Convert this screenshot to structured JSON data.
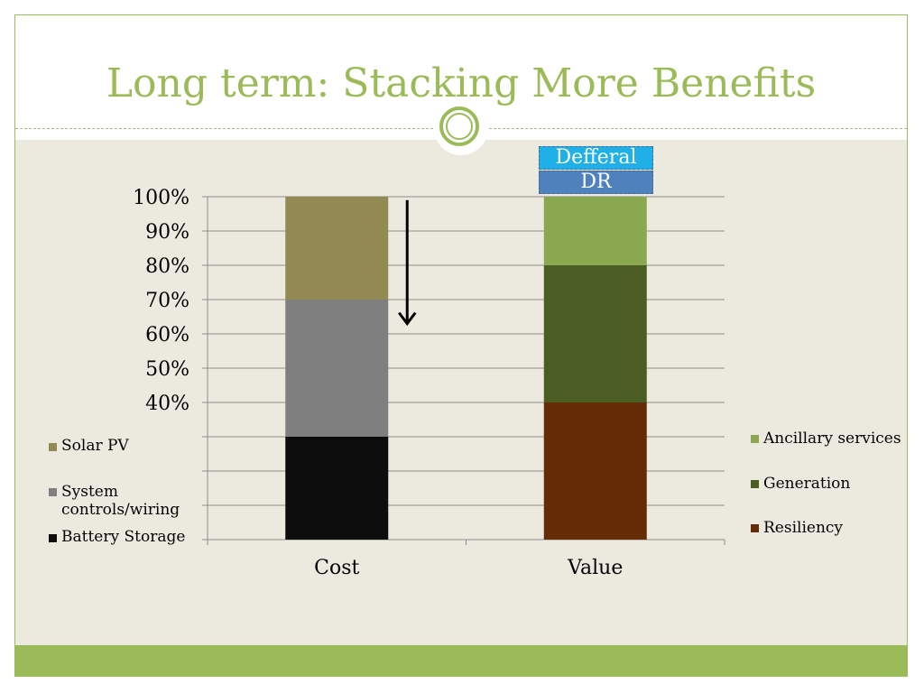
{
  "slide": {
    "title": "Long term: Stacking More Benefits"
  },
  "top_labels": {
    "defferal": "Defferal",
    "dr": "DR"
  },
  "legend_left": [
    {
      "label": "Solar PV",
      "color": "#938953"
    },
    {
      "label": "System\ncontrols/wiring",
      "color": "#7f7f7f"
    },
    {
      "label": "Battery Storage",
      "color": "#0d0d0d"
    }
  ],
  "legend_right": [
    {
      "label": "Ancillary services",
      "color": "#8aa84f"
    },
    {
      "label": "Generation",
      "color": "#4a5e23"
    },
    {
      "label": "Resiliency",
      "color": "#632c04"
    }
  ],
  "chart_data": {
    "type": "bar",
    "stacked": true,
    "categories": [
      "Cost",
      "Value"
    ],
    "ylim": [
      0,
      100
    ],
    "ytick_labels": [
      "100%",
      "90%",
      "80%",
      "70%",
      "60%",
      "50%",
      "40%"
    ],
    "grid": true,
    "series": [
      {
        "category": "Cost",
        "name": "Battery Storage",
        "bottom": 0,
        "top": 30,
        "color": "#0d0d0d"
      },
      {
        "category": "Cost",
        "name": "System controls/wiring",
        "bottom": 30,
        "top": 70,
        "color": "#7f7f7f"
      },
      {
        "category": "Cost",
        "name": "Solar PV",
        "bottom": 70,
        "top": 100,
        "color": "#938953"
      },
      {
        "category": "Value",
        "name": "Resiliency",
        "bottom": 0,
        "top": 40,
        "color": "#632c04"
      },
      {
        "category": "Value",
        "name": "Generation",
        "bottom": 40,
        "top": 80,
        "color": "#4a5e23"
      },
      {
        "category": "Value",
        "name": "Ancillary services",
        "bottom": 80,
        "top": 100,
        "color": "#8aa84f"
      }
    ],
    "stacked_above_value": [
      {
        "name": "DR",
        "color": "#4f81bd"
      },
      {
        "name": "Defferal",
        "color": "#1eb0e6"
      }
    ],
    "annotation": {
      "type": "arrow-down",
      "category": "Cost",
      "from": 99,
      "to": 63
    }
  }
}
